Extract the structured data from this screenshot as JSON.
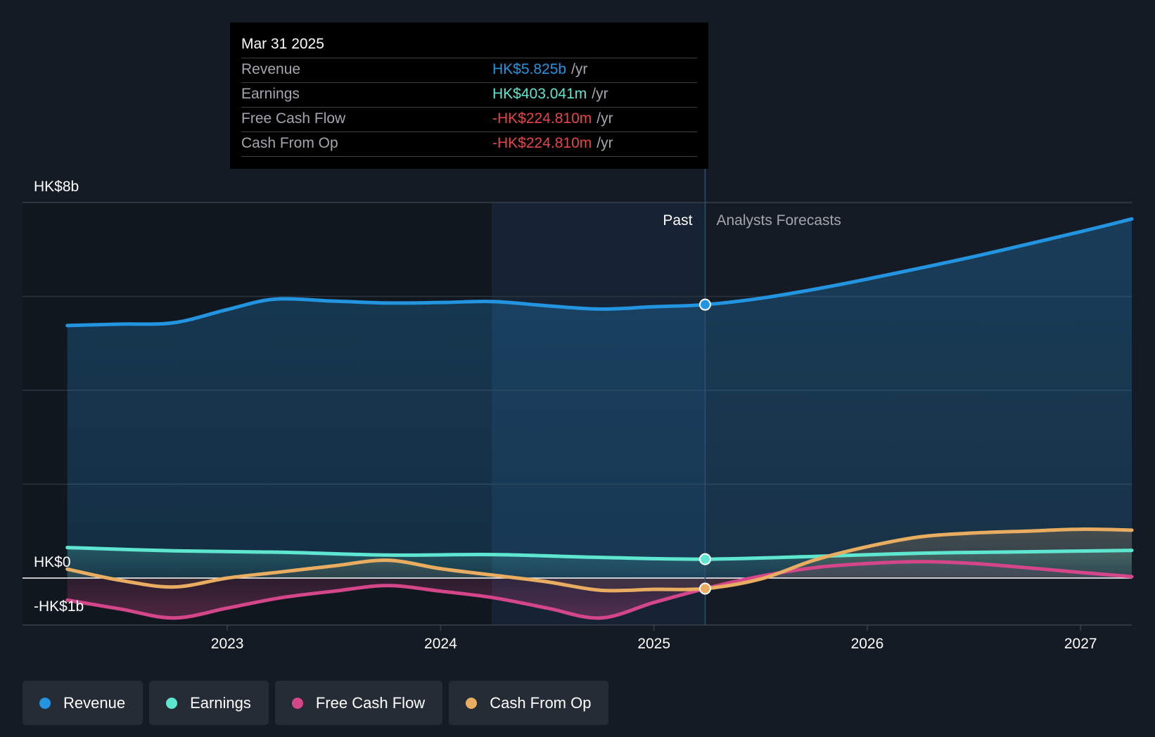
{
  "colors": {
    "background": "#151b24",
    "revenue": "#2394e0",
    "earnings": "#5ee6d0",
    "free_cash_flow": "#d4468a",
    "cash_from_op": "#e8ad61",
    "negative": "#e6444c",
    "grid": "#2e343d",
    "zero_line": "#ffffff",
    "muted_text": "#a3a6ab"
  },
  "tooltip": {
    "date": "Mar 31 2025",
    "rows": [
      {
        "label": "Revenue",
        "value": "HK$5.825b",
        "unit": "/yr",
        "color": "#2394e0"
      },
      {
        "label": "Earnings",
        "value": "HK$403.041m",
        "unit": "/yr",
        "color": "#5ee6d0"
      },
      {
        "label": "Free Cash Flow",
        "value": "-HK$224.810m",
        "unit": "/yr",
        "color": "#e6444c"
      },
      {
        "label": "Cash From Op",
        "value": "-HK$224.810m",
        "unit": "/yr",
        "color": "#e6444c"
      }
    ]
  },
  "chart_data": {
    "type": "line",
    "title": "",
    "xlabel": "",
    "ylabel": "",
    "x_ticks": [
      2023,
      2024,
      2025,
      2026,
      2027
    ],
    "ylim": [
      -1,
      8
    ],
    "xlim": [
      2022.04,
      2027.24
    ],
    "y_labels": [
      {
        "value": 8,
        "label": "HK$8b"
      },
      {
        "value": 0,
        "label": "HK$0"
      },
      {
        "value": -1,
        "label": "-HK$1b"
      }
    ],
    "gridlines": [
      8,
      6,
      4,
      2,
      0
    ],
    "divider": {
      "x": 2025.24,
      "past_label": "Past",
      "forecast_label": "Analysts Forecasts"
    },
    "past_shade_start": 2024.24,
    "series": [
      {
        "name": "Revenue",
        "key": "revenue",
        "color": "#2394e0",
        "x": [
          2022.25,
          2022.5,
          2022.75,
          2023.0,
          2023.22,
          2023.5,
          2023.75,
          2024.0,
          2024.25,
          2024.5,
          2024.75,
          2025.0,
          2025.24,
          2025.5,
          2025.75,
          2026.0,
          2026.5,
          2027.0,
          2027.24
        ],
        "values": [
          5.38,
          5.41,
          5.44,
          5.72,
          5.94,
          5.9,
          5.86,
          5.87,
          5.89,
          5.8,
          5.73,
          5.78,
          5.825,
          5.96,
          6.15,
          6.37,
          6.85,
          7.38,
          7.65
        ]
      },
      {
        "name": "Earnings",
        "key": "earnings",
        "color": "#5ee6d0",
        "x": [
          2022.25,
          2022.75,
          2023.25,
          2023.75,
          2024.25,
          2024.75,
          2025.24,
          2025.75,
          2026.25,
          2026.75,
          2027.24
        ],
        "values": [
          0.65,
          0.58,
          0.55,
          0.49,
          0.5,
          0.44,
          0.403,
          0.46,
          0.53,
          0.56,
          0.59
        ]
      },
      {
        "name": "Free Cash Flow",
        "key": "free_cash_flow",
        "color": "#d4468a",
        "x": [
          2022.25,
          2022.5,
          2022.75,
          2023.0,
          2023.25,
          2023.5,
          2023.75,
          2024.0,
          2024.25,
          2024.5,
          2024.75,
          2025.0,
          2025.24,
          2025.5,
          2025.75,
          2026.0,
          2026.25,
          2026.5,
          2026.75,
          2027.0,
          2027.24
        ],
        "values": [
          -0.47,
          -0.66,
          -0.85,
          -0.64,
          -0.42,
          -0.28,
          -0.16,
          -0.28,
          -0.42,
          -0.64,
          -0.85,
          -0.52,
          -0.225,
          0.04,
          0.22,
          0.31,
          0.35,
          0.31,
          0.22,
          0.12,
          0.03
        ]
      },
      {
        "name": "Cash From Op",
        "key": "cash_from_op",
        "color": "#e8ad61",
        "x": [
          2022.25,
          2022.5,
          2022.75,
          2023.0,
          2023.25,
          2023.5,
          2023.75,
          2024.0,
          2024.25,
          2024.5,
          2024.75,
          2025.0,
          2025.24,
          2025.5,
          2025.75,
          2026.0,
          2026.25,
          2026.5,
          2026.75,
          2027.0,
          2027.24
        ],
        "values": [
          0.19,
          -0.05,
          -0.19,
          0.0,
          0.13,
          0.26,
          0.38,
          0.2,
          0.06,
          -0.08,
          -0.26,
          -0.24,
          -0.225,
          -0.02,
          0.38,
          0.67,
          0.88,
          0.96,
          1.0,
          1.04,
          1.02
        ]
      }
    ],
    "highlight_x": 2025.24,
    "highlight_series": [
      "revenue",
      "earnings",
      "cash_from_op"
    ]
  },
  "legend": [
    {
      "label": "Revenue",
      "color": "#2394e0"
    },
    {
      "label": "Earnings",
      "color": "#5ee6d0"
    },
    {
      "label": "Free Cash Flow",
      "color": "#d4468a"
    },
    {
      "label": "Cash From Op",
      "color": "#e8ad61"
    }
  ]
}
